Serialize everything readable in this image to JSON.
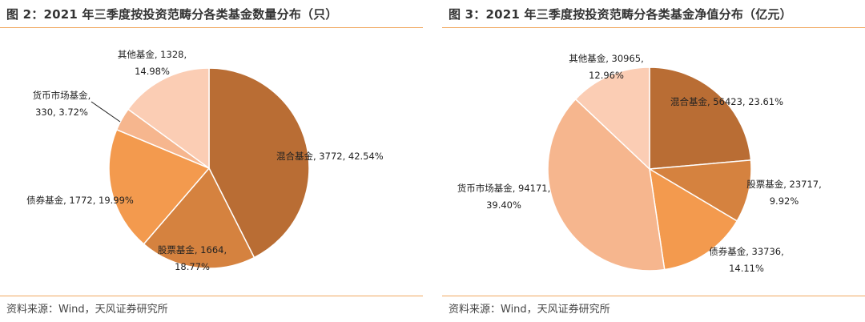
{
  "charts": [
    {
      "title": "图 2：2021 年三季度按投资范畴分各类基金数量分布（只）",
      "source": "资料来源：Wind，天风证券研究所",
      "chart_data": {
        "type": "pie",
        "title": "图 2：2021 年三季度按投资范畴分各类基金数量分布（只）",
        "unit": "只",
        "slices": [
          {
            "name": "混合基金",
            "value": 3772,
            "percent": "42.54%",
            "color": "#b96d34",
            "line1": "混合基金, 3772, 42.54%",
            "line2": ""
          },
          {
            "name": "股票基金",
            "value": 1664,
            "percent": "18.77%",
            "color": "#d5823f",
            "line1": "股票基金, 1664,",
            "line2": "18.77%"
          },
          {
            "name": "债券基金",
            "value": 1772,
            "percent": "19.99%",
            "color": "#f39a4e",
            "line1": "债券基金, 1772, 19.99%",
            "line2": ""
          },
          {
            "name": "货币市场基金",
            "value": 330,
            "percent": "3.72%",
            "color": "#f6b68e",
            "line1": "货币市场基金,",
            "line2": "330, 3.72%"
          },
          {
            "name": "其他基金",
            "value": 1328,
            "percent": "14.98%",
            "color": "#fbcdb4",
            "line1": "其他基金, 1328,",
            "line2": "14.98%"
          }
        ]
      }
    },
    {
      "title": "图 3：2021 年三季度按投资范畴分各类基金净值分布（亿元）",
      "source": "资料来源：Wind，天风证券研究所",
      "chart_data": {
        "type": "pie",
        "title": "图 3：2021 年三季度按投资范畴分各类基金净值分布（亿元）",
        "unit": "亿元",
        "slices": [
          {
            "name": "混合基金",
            "value": 56423,
            "percent": "23.61%",
            "color": "#b96d34",
            "line1": "混合基金, 56423, 23.61%",
            "line2": ""
          },
          {
            "name": "股票基金",
            "value": 23717,
            "percent": "9.92%",
            "color": "#d5823f",
            "line1": "股票基金, 23717,",
            "line2": "9.92%"
          },
          {
            "name": "债券基金",
            "value": 33736,
            "percent": "14.11%",
            "color": "#f39a4e",
            "line1": "债券基金, 33736,",
            "line2": "14.11%"
          },
          {
            "name": "货币市场基金",
            "value": 94171,
            "percent": "39.40%",
            "color": "#f6b68e",
            "line1": "货币市场基金, 94171,",
            "line2": "39.40%"
          },
          {
            "name": "其他基金",
            "value": 30965,
            "percent": "12.96%",
            "color": "#fbcdb4",
            "line1": "其他基金, 30965,",
            "line2": "12.96%"
          }
        ]
      }
    }
  ]
}
